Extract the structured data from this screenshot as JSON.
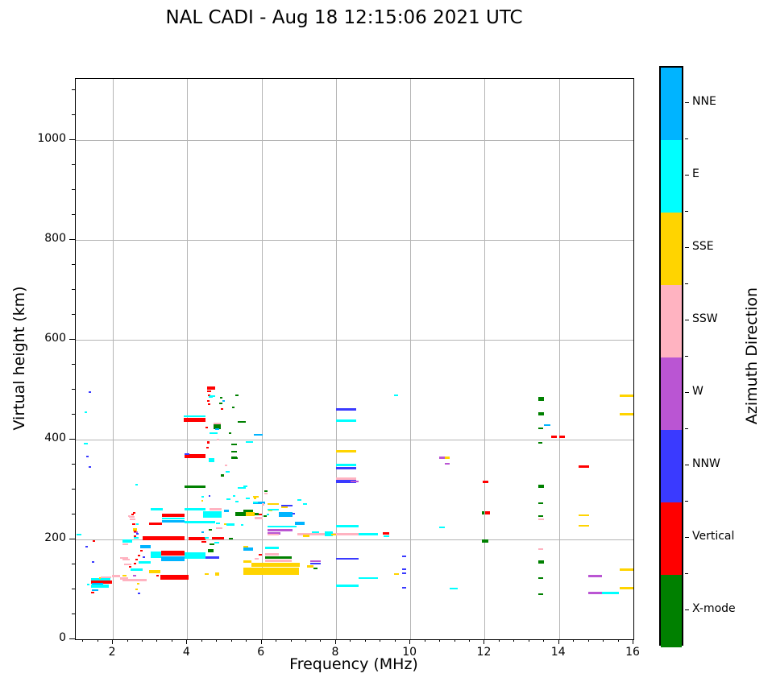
{
  "title": "NAL CADI - Aug 18 12:15:06 2021 UTC",
  "chart_data": {
    "type": "scatter",
    "title": "NAL CADI - Aug 18 12:15:06 2021 UTC",
    "xlabel": "Frequency (MHz)",
    "ylabel": "Virtual height (km)",
    "xlim": [
      1,
      16
    ],
    "ylim": [
      0,
      1122
    ],
    "x_ticks": [
      2,
      4,
      6,
      8,
      10,
      12,
      14,
      16
    ],
    "y_ticks": [
      0,
      200,
      400,
      600,
      800,
      1000
    ],
    "x_minor_step": 0.4,
    "y_minor_step": 50,
    "grid": true,
    "grid_color": "#b5b5b5",
    "colorbar": {
      "label": "Azimuth Direction",
      "categories_top_to_bottom": [
        {
          "key": "NNE",
          "name": "NNE",
          "color": "#00b4ff"
        },
        {
          "key": "E",
          "name": "E",
          "color": "#00ffff"
        },
        {
          "key": "SSE",
          "name": "SSE",
          "color": "#ffd400"
        },
        {
          "key": "SSW",
          "name": "SSW",
          "color": "#ffb3c1"
        },
        {
          "key": "W",
          "name": "W",
          "color": "#ba55d3"
        },
        {
          "key": "NNW",
          "name": "NNW",
          "color": "#3a3aff"
        },
        {
          "key": "V",
          "name": "Vertical",
          "color": "#ff0000"
        },
        {
          "key": "X",
          "name": "X-mode",
          "color": "#008000"
        }
      ]
    },
    "series_colors": {
      "NNE": "#00b4ff",
      "E": "#00ffff",
      "SSE": "#ffd400",
      "SSW": "#ffb3c1",
      "W": "#ba55d3",
      "NNW": "#3a3aff",
      "V": "#ff0000",
      "X": "#008000"
    },
    "points_format": "[freq_start_MHz, freq_end_MHz, virtual_height_km, direction_key, thickness_px(optional, default 2)]",
    "points": [
      [
        1.3,
        1.36,
        110,
        "E"
      ],
      [
        1.4,
        1.93,
        120,
        "E",
        3
      ],
      [
        1.4,
        1.97,
        115,
        "V",
        4
      ],
      [
        1.43,
        1.74,
        111,
        "NNE",
        3
      ],
      [
        1.4,
        1.89,
        106,
        "E",
        4
      ],
      [
        1.43,
        1.61,
        98,
        "NNE"
      ],
      [
        1.4,
        1.49,
        93,
        "V"
      ],
      [
        1.62,
        1.68,
        123,
        "SSE"
      ],
      [
        1.68,
        1.95,
        125,
        "SSW"
      ],
      [
        1.98,
        2.2,
        126,
        "SSW",
        3
      ],
      [
        2.2,
        2.42,
        122,
        "SSW",
        3
      ],
      [
        1.43,
        1.49,
        155,
        "NNW"
      ],
      [
        2.47,
        2.8,
        140,
        "E",
        3
      ],
      [
        2.43,
        2.5,
        145,
        "V"
      ],
      [
        2.55,
        2.62,
        152,
        "V"
      ],
      [
        2.6,
        2.67,
        160,
        "V"
      ],
      [
        2.67,
        2.74,
        168,
        "V"
      ],
      [
        2.2,
        2.4,
        163,
        "SSW"
      ],
      [
        2.65,
        2.72,
        112,
        "SSE"
      ],
      [
        2.6,
        2.67,
        100,
        "SSE"
      ],
      [
        2.67,
        2.73,
        92,
        "NNW"
      ],
      [
        1.35,
        1.42,
        495,
        "NNW"
      ],
      [
        1.24,
        1.31,
        455,
        "E"
      ],
      [
        1.22,
        1.33,
        392,
        "E"
      ],
      [
        1.28,
        1.35,
        366,
        "NNW"
      ],
      [
        1.35,
        1.42,
        345,
        "NNW"
      ],
      [
        1.26,
        1.33,
        186,
        "NNW"
      ],
      [
        1.46,
        1.52,
        196,
        "V"
      ],
      [
        1.02,
        1.15,
        209,
        "E"
      ],
      [
        2.6,
        2.68,
        310,
        "E"
      ],
      [
        2.4,
        2.47,
        247,
        "SSW"
      ],
      [
        2.45,
        2.52,
        240,
        "SSW"
      ],
      [
        2.5,
        2.57,
        250,
        "V"
      ],
      [
        2.43,
        2.58,
        245,
        "SSW"
      ],
      [
        2.54,
        2.6,
        253,
        "V"
      ],
      [
        2.52,
        2.6,
        240,
        "SSW"
      ],
      [
        2.52,
        2.6,
        230,
        "V"
      ],
      [
        2.63,
        2.7,
        230,
        "E"
      ],
      [
        2.54,
        2.65,
        220,
        "SSE",
        4
      ],
      [
        2.57,
        2.66,
        214,
        "W"
      ],
      [
        2.63,
        2.7,
        212,
        "NNW"
      ],
      [
        2.57,
        2.7,
        204,
        "E"
      ],
      [
        2.56,
        2.62,
        216,
        "V"
      ],
      [
        2.56,
        2.62,
        206,
        "V"
      ],
      [
        2.26,
        2.52,
        196,
        "E",
        4
      ],
      [
        2.26,
        2.41,
        191,
        "SSW"
      ],
      [
        2.74,
        3.02,
        186,
        "NNE",
        4
      ],
      [
        2.74,
        2.8,
        178,
        "V"
      ],
      [
        2.8,
        2.87,
        164,
        "NNW"
      ],
      [
        3.02,
        3.3,
        170,
        "E",
        8
      ],
      [
        3.3,
        3.93,
        172,
        "V",
        6
      ],
      [
        3.3,
        3.93,
        161,
        "NNE",
        6
      ],
      [
        3.93,
        4.49,
        168,
        "E",
        8
      ],
      [
        4.55,
        4.7,
        177,
        "X",
        4
      ],
      [
        4.49,
        4.85,
        163,
        "NNW",
        3
      ],
      [
        4.72,
        4.85,
        193,
        "E"
      ],
      [
        4.59,
        4.72,
        190,
        "X"
      ],
      [
        2.8,
        3.93,
        202,
        "V",
        5
      ],
      [
        4.03,
        4.49,
        202,
        "V",
        4
      ],
      [
        4.66,
        4.98,
        202,
        "V",
        3
      ],
      [
        4.46,
        4.57,
        203,
        "E"
      ],
      [
        5.11,
        5.22,
        201,
        "X"
      ],
      [
        2.97,
        3.32,
        232,
        "V",
        3
      ],
      [
        3.32,
        3.93,
        248,
        "V",
        4
      ],
      [
        3.32,
        3.93,
        242,
        "E"
      ],
      [
        3.32,
        3.93,
        237,
        "NNE",
        3
      ],
      [
        3.93,
        4.74,
        234,
        "E",
        3
      ],
      [
        3.02,
        3.34,
        260,
        "E",
        3
      ],
      [
        3.93,
        4.49,
        261,
        "E",
        3
      ],
      [
        2.7,
        3.02,
        154,
        "E",
        3
      ],
      [
        2.26,
        2.45,
        160,
        "SSW"
      ],
      [
        2.3,
        2.5,
        150,
        "SSW"
      ],
      [
        2.97,
        3.27,
        135,
        "SSE",
        4
      ],
      [
        3.27,
        4.03,
        125,
        "V",
        6
      ],
      [
        3.17,
        3.23,
        128,
        "V"
      ],
      [
        2.54,
        2.63,
        127,
        "W"
      ],
      [
        2.26,
        2.9,
        119,
        "SSW",
        3
      ],
      [
        2.26,
        2.37,
        127,
        "SSE"
      ],
      [
        4.46,
        4.57,
        130,
        "SSE"
      ],
      [
        4.75,
        4.85,
        130,
        "SSE",
        4
      ],
      [
        4.38,
        4.45,
        285,
        "E"
      ],
      [
        4.38,
        4.43,
        278,
        "SSE"
      ],
      [
        5.05,
        5.16,
        280,
        "E"
      ],
      [
        5.3,
        5.37,
        276,
        "E"
      ],
      [
        5.58,
        5.69,
        282,
        "E"
      ],
      [
        5.76,
        6.1,
        274,
        "NNE",
        3
      ],
      [
        4.6,
        4.93,
        261,
        "SSW",
        3
      ],
      [
        4.42,
        4.93,
        250,
        "E",
        8
      ],
      [
        4.98,
        5.11,
        257,
        "NNE",
        3
      ],
      [
        5.28,
        5.58,
        250,
        "X",
        5
      ],
      [
        5.58,
        5.82,
        250,
        "SSE",
        5
      ],
      [
        5.82,
        5.93,
        250,
        "X",
        3
      ],
      [
        5.82,
        6.04,
        243,
        "SSW",
        3
      ],
      [
        6.04,
        6.13,
        247,
        "X"
      ],
      [
        6.13,
        6.2,
        250,
        "E"
      ],
      [
        6.17,
        6.28,
        258,
        "SSE"
      ],
      [
        4.77,
        4.88,
        232,
        "E"
      ],
      [
        4.98,
        5.07,
        231,
        "SSE"
      ],
      [
        5.05,
        5.28,
        230,
        "E",
        3
      ],
      [
        5.45,
        5.52,
        229,
        "E"
      ],
      [
        4.57,
        4.66,
        219,
        "X"
      ],
      [
        4.77,
        4.94,
        223,
        "SSW"
      ],
      [
        4.38,
        4.45,
        215,
        "NNE"
      ],
      [
        4.38,
        4.51,
        195,
        "V"
      ],
      [
        3.9,
        4.49,
        447,
        "E"
      ],
      [
        3.9,
        4.49,
        440,
        "V",
        5
      ],
      [
        4.53,
        4.74,
        503,
        "V",
        4
      ],
      [
        4.53,
        4.64,
        496,
        "V"
      ],
      [
        4.55,
        4.62,
        488,
        "V"
      ],
      [
        4.57,
        4.68,
        485,
        "E"
      ],
      [
        4.53,
        4.6,
        478,
        "V"
      ],
      [
        4.55,
        4.62,
        470,
        "V"
      ],
      [
        4.9,
        4.97,
        461,
        "V"
      ],
      [
        4.6,
        4.75,
        487,
        "E"
      ],
      [
        4.86,
        4.95,
        473,
        "X"
      ],
      [
        4.48,
        4.55,
        424,
        "V"
      ],
      [
        5.3,
        5.38,
        489,
        "X"
      ],
      [
        4.87,
        4.94,
        483,
        "X"
      ],
      [
        5.2,
        5.28,
        465,
        "X"
      ],
      [
        4.95,
        5.02,
        477,
        "NNE"
      ],
      [
        4.7,
        4.9,
        432,
        "SSW"
      ],
      [
        4.7,
        4.9,
        425,
        "X",
        6
      ],
      [
        4.59,
        4.81,
        413,
        "E"
      ],
      [
        4.75,
        4.85,
        421,
        "NNE"
      ],
      [
        5.35,
        5.57,
        435,
        "X"
      ],
      [
        5.11,
        5.18,
        413,
        "X"
      ],
      [
        4.53,
        4.6,
        394,
        "V",
        3
      ],
      [
        4.79,
        4.86,
        400,
        "SSW"
      ],
      [
        5.57,
        5.78,
        395,
        "E"
      ],
      [
        5.78,
        6.02,
        410,
        "NNE"
      ],
      [
        3.93,
        4.49,
        367,
        "V",
        5
      ],
      [
        3.93,
        4.05,
        371,
        "NNW"
      ],
      [
        4.51,
        4.57,
        383,
        "V"
      ],
      [
        5.18,
        5.33,
        390,
        "X"
      ],
      [
        5.18,
        5.33,
        375,
        "X"
      ],
      [
        5.18,
        5.33,
        363,
        "X",
        3
      ],
      [
        4.57,
        4.74,
        358,
        "E",
        5
      ],
      [
        5.18,
        5.35,
        362,
        "X"
      ],
      [
        5.0,
        5.07,
        348,
        "SSW"
      ],
      [
        5.02,
        5.13,
        335,
        "E"
      ],
      [
        4.9,
        5.0,
        328,
        "X",
        3
      ],
      [
        3.93,
        4.49,
        306,
        "X",
        3
      ],
      [
        5.35,
        5.57,
        303,
        "E"
      ],
      [
        4.57,
        4.63,
        287,
        "NNW"
      ],
      [
        5.22,
        5.29,
        287,
        "E"
      ],
      [
        5.78,
        5.86,
        282,
        "SSE"
      ],
      [
        6.08,
        6.15,
        292,
        "SSW"
      ],
      [
        6.08,
        6.15,
        297,
        "X"
      ],
      [
        5.5,
        5.61,
        306,
        "E"
      ],
      [
        5.76,
        5.93,
        286,
        "SSE"
      ],
      [
        5.76,
        5.89,
        274,
        "E"
      ],
      [
        6.0,
        6.08,
        270,
        "SSW",
        3
      ],
      [
        6.15,
        6.47,
        271,
        "SSE"
      ],
      [
        6.52,
        6.84,
        267,
        "NNW"
      ],
      [
        6.52,
        6.7,
        264,
        "SSE"
      ],
      [
        6.15,
        6.47,
        259,
        "E"
      ],
      [
        6.95,
        7.06,
        279,
        "E"
      ],
      [
        7.12,
        7.23,
        271,
        "E"
      ],
      [
        5.5,
        5.76,
        258,
        "X",
        3
      ],
      [
        5.93,
        6.0,
        250,
        "V"
      ],
      [
        6.47,
        6.84,
        250,
        "NNE",
        6
      ],
      [
        6.84,
        6.9,
        252,
        "NNW"
      ],
      [
        6.9,
        7.16,
        232,
        "NNE",
        4
      ],
      [
        6.15,
        6.95,
        226,
        "E"
      ],
      [
        6.15,
        6.84,
        218,
        "W",
        3
      ],
      [
        6.15,
        6.5,
        212,
        "W",
        3
      ],
      [
        6.15,
        6.47,
        209,
        "SSW"
      ],
      [
        6.95,
        8.6,
        210,
        "SSW",
        3
      ],
      [
        7.34,
        7.55,
        214,
        "E"
      ],
      [
        7.12,
        7.28,
        208,
        "SSE",
        3
      ],
      [
        7.7,
        7.92,
        211,
        "E",
        6
      ],
      [
        7.88,
        8.0,
        209,
        "SSE"
      ],
      [
        8.6,
        9.14,
        211,
        "E",
        3
      ],
      [
        9.25,
        9.44,
        212,
        "V",
        3
      ],
      [
        9.27,
        9.44,
        207,
        "E"
      ],
      [
        8.0,
        8.6,
        226,
        "E",
        3
      ],
      [
        6.1,
        6.47,
        183,
        "E",
        3
      ],
      [
        5.5,
        5.78,
        180,
        "NNE",
        4
      ],
      [
        5.5,
        5.65,
        186,
        "SSE"
      ],
      [
        6.1,
        6.47,
        170,
        "SSW",
        3
      ],
      [
        5.93,
        6.0,
        170,
        "V"
      ],
      [
        6.1,
        6.8,
        164,
        "X",
        3
      ],
      [
        6.1,
        6.8,
        158,
        "SSW",
        3
      ],
      [
        5.72,
        7.03,
        150,
        "SSE",
        5
      ],
      [
        5.5,
        7.0,
        137,
        "SSE",
        9
      ],
      [
        5.5,
        5.72,
        155,
        "SSE",
        3
      ],
      [
        5.82,
        5.93,
        162,
        "SSW"
      ],
      [
        7.3,
        7.6,
        156,
        "W"
      ],
      [
        7.3,
        7.6,
        151,
        "NNW"
      ],
      [
        7.23,
        7.4,
        146,
        "SSE",
        3
      ],
      [
        7.4,
        7.51,
        142,
        "X"
      ],
      [
        8.0,
        8.6,
        162,
        "NNW"
      ],
      [
        9.78,
        9.89,
        166,
        "NNW"
      ],
      [
        9.78,
        9.89,
        141,
        "NNW"
      ],
      [
        9.78,
        9.89,
        133,
        "NNW"
      ],
      [
        9.57,
        9.7,
        130,
        "SSE"
      ],
      [
        8.6,
        9.14,
        122,
        "E"
      ],
      [
        8.0,
        8.6,
        108,
        "E",
        3
      ],
      [
        9.78,
        9.89,
        103,
        "NNW"
      ],
      [
        8.0,
        8.55,
        461,
        "NNW",
        3
      ],
      [
        8.0,
        8.55,
        437,
        "E",
        3
      ],
      [
        8.0,
        8.55,
        377,
        "SSE",
        3
      ],
      [
        8.0,
        8.55,
        349,
        "E",
        3
      ],
      [
        8.0,
        8.55,
        343,
        "NNW",
        3
      ],
      [
        8.0,
        8.55,
        322,
        "SSW",
        3
      ],
      [
        8.0,
        8.55,
        316,
        "NNW",
        4
      ],
      [
        8.4,
        8.6,
        316,
        "W"
      ],
      [
        9.57,
        9.68,
        489,
        "E"
      ],
      [
        10.77,
        10.92,
        363,
        "W",
        3
      ],
      [
        10.92,
        11.05,
        363,
        "SSE",
        3
      ],
      [
        10.92,
        11.05,
        351,
        "W"
      ],
      [
        11.94,
        12.09,
        316,
        "V",
        3
      ],
      [
        11.92,
        12.0,
        253,
        "X",
        4
      ],
      [
        12.0,
        12.13,
        253,
        "V",
        4
      ],
      [
        10.77,
        10.92,
        224,
        "E"
      ],
      [
        11.92,
        12.09,
        196,
        "X",
        4
      ],
      [
        11.05,
        11.27,
        101,
        "E"
      ],
      [
        13.45,
        13.6,
        481,
        "X",
        5
      ],
      [
        13.45,
        13.6,
        452,
        "X",
        4
      ],
      [
        13.6,
        13.77,
        429,
        "NNE"
      ],
      [
        13.45,
        13.58,
        422,
        "X"
      ],
      [
        13.78,
        13.95,
        406,
        "V",
        3
      ],
      [
        14.0,
        14.15,
        406,
        "V",
        3
      ],
      [
        13.45,
        13.54,
        394,
        "X"
      ],
      [
        13.45,
        13.6,
        306,
        "X",
        4
      ],
      [
        13.45,
        13.58,
        273,
        "X"
      ],
      [
        13.45,
        13.58,
        247,
        "X"
      ],
      [
        13.45,
        13.6,
        240,
        "SSW"
      ],
      [
        13.45,
        13.58,
        181,
        "SSW"
      ],
      [
        13.45,
        13.6,
        155,
        "X",
        4
      ],
      [
        13.45,
        13.58,
        122,
        "X"
      ],
      [
        13.45,
        13.58,
        91,
        "X"
      ],
      [
        14.52,
        14.8,
        346,
        "V",
        3
      ],
      [
        14.52,
        14.8,
        248,
        "SSE"
      ],
      [
        14.52,
        14.8,
        228,
        "SSE"
      ],
      [
        14.78,
        15.15,
        127,
        "W",
        3
      ],
      [
        14.78,
        15.15,
        93,
        "W",
        3
      ],
      [
        15.15,
        15.6,
        92,
        "E",
        3
      ],
      [
        15.62,
        16.0,
        487,
        "SSE",
        3
      ],
      [
        15.62,
        16.0,
        451,
        "SSE",
        3
      ],
      [
        15.62,
        16.0,
        140,
        "SSE",
        3
      ],
      [
        15.62,
        16.0,
        103,
        "SSE",
        3
      ]
    ]
  }
}
